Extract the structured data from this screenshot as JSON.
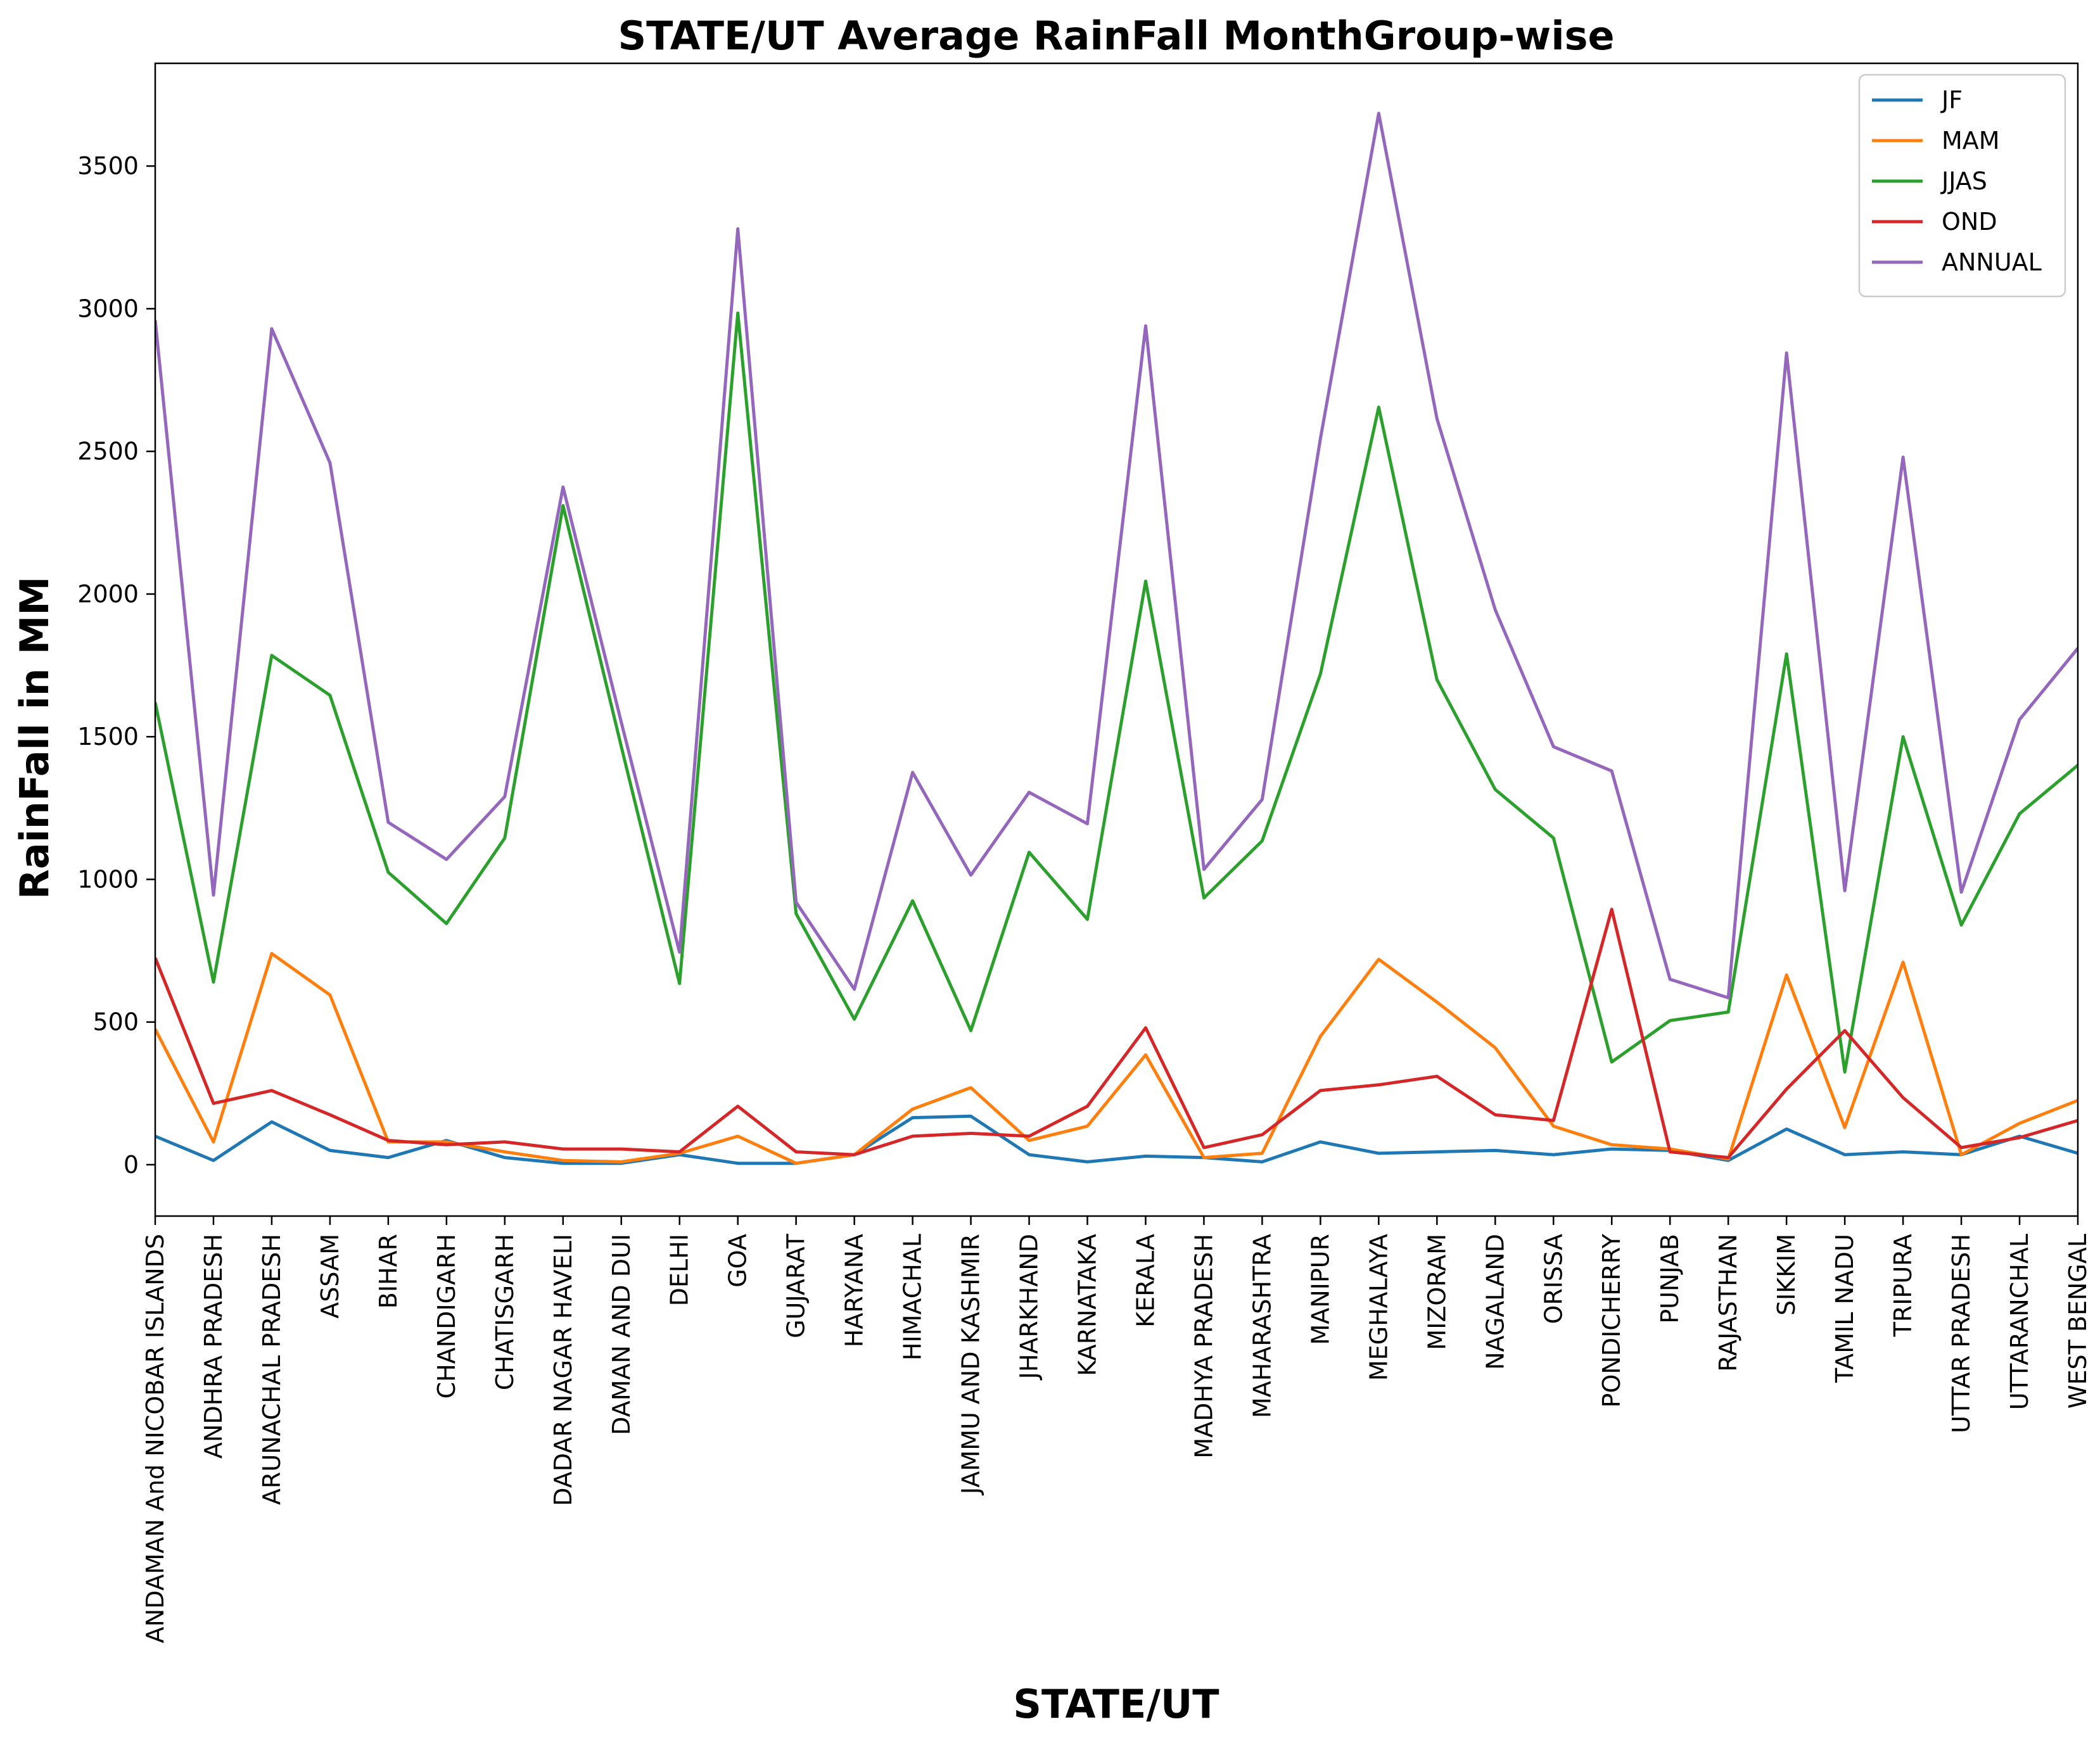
{
  "chart_data": {
    "type": "line",
    "title": "STATE/UT Average RainFall MonthGroup-wise",
    "xlabel": "STATE/UT",
    "ylabel": "RainFall in MM",
    "ylim": [
      -180,
      3860
    ],
    "yticks": [
      0,
      500,
      1000,
      1500,
      2000,
      2500,
      3000,
      3500
    ],
    "ytick_labels": [
      "0",
      "500",
      "1000",
      "1500",
      "2000",
      "2500",
      "3000",
      "3500"
    ],
    "grid": false,
    "legend_position": "top-right",
    "categories": [
      "ANDAMAN And NICOBAR ISLANDS",
      "ANDHRA PRADESH",
      "ARUNACHAL PRADESH",
      "ASSAM",
      "BIHAR",
      "CHANDIGARH",
      "CHATISGARH",
      "DADAR NAGAR HAVELI",
      "DAMAN AND DUI",
      "DELHI",
      "GOA",
      "GUJARAT",
      "HARYANA",
      "HIMACHAL",
      "JAMMU AND KASHMIR",
      "JHARKHAND",
      "KARNATAKA",
      "KERALA",
      "MADHYA PRADESH",
      "MAHARASHTRA",
      "MANIPUR",
      "MEGHALAYA",
      "MIZORAM",
      "NAGALAND",
      "ORISSA",
      "PONDICHERRY",
      "PUNJAB",
      "RAJASTHAN",
      "SIKKIM",
      "TAMIL NADU",
      "TRIPURA",
      "UTTAR PRADESH",
      "UTTARANCHAL",
      "WEST BENGAL"
    ],
    "series": [
      {
        "name": "JF",
        "color": "#1f77b4",
        "values": [
          100,
          15,
          150,
          50,
          25,
          85,
          25,
          5,
          5,
          35,
          5,
          5,
          35,
          165,
          170,
          35,
          10,
          30,
          25,
          10,
          80,
          40,
          45,
          50,
          35,
          55,
          50,
          15,
          125,
          35,
          45,
          35,
          100,
          40
        ]
      },
      {
        "name": "MAM",
        "color": "#ff7f0e",
        "values": [
          475,
          80,
          740,
          595,
          80,
          80,
          45,
          15,
          10,
          40,
          100,
          5,
          35,
          195,
          270,
          85,
          135,
          385,
          25,
          40,
          450,
          720,
          570,
          410,
          135,
          70,
          55,
          20,
          665,
          130,
          710,
          35,
          145,
          225
        ]
      },
      {
        "name": "JJAS",
        "color": "#2ca02c",
        "values": [
          1620,
          640,
          1785,
          1645,
          1025,
          845,
          1145,
          2310,
          1465,
          635,
          2985,
          880,
          510,
          925,
          470,
          1095,
          860,
          2045,
          935,
          1135,
          1720,
          2655,
          1700,
          1315,
          1145,
          360,
          505,
          535,
          1790,
          325,
          1500,
          840,
          1230,
          1400
        ]
      },
      {
        "name": "OND",
        "color": "#d62728",
        "values": [
          725,
          215,
          260,
          175,
          85,
          70,
          80,
          55,
          55,
          45,
          205,
          45,
          35,
          100,
          110,
          100,
          205,
          480,
          60,
          105,
          260,
          280,
          310,
          175,
          155,
          895,
          45,
          25,
          265,
          470,
          235,
          60,
          95,
          155
        ]
      },
      {
        "name": "ANNUAL",
        "color": "#9467bd",
        "values": [
          2960,
          945,
          2930,
          2460,
          1200,
          1070,
          1290,
          2375,
          1550,
          745,
          3280,
          920,
          615,
          1375,
          1015,
          1305,
          1195,
          2940,
          1035,
          1280,
          2545,
          3685,
          2615,
          1945,
          1465,
          1380,
          650,
          585,
          2845,
          960,
          2480,
          955,
          1560,
          1810
        ]
      }
    ]
  }
}
